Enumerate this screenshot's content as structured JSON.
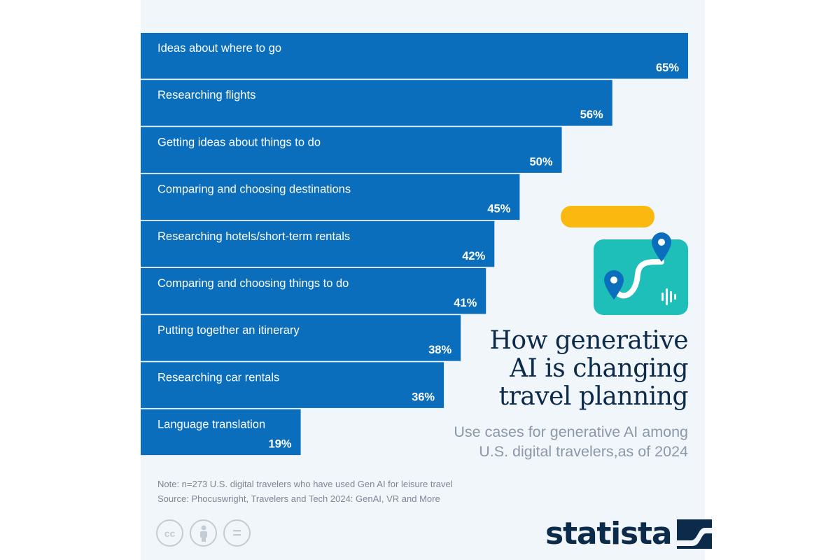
{
  "chart_data": {
    "type": "bar",
    "orientation": "horizontal",
    "title": "How generative AI is changing travel planning",
    "subtitle": "Use cases for generative AI among U.S. digital travelers,as of 2024",
    "categories": [
      "Ideas about where to go",
      "Researching flights",
      "Getting ideas about things to do",
      "Comparing and choosing destinations",
      "Researching hotels/short-term rentals",
      "Comparing and choosing things to do",
      "Putting together an itinerary",
      "Researching car rentals",
      "Language translation"
    ],
    "values": [
      65,
      56,
      50,
      45,
      42,
      41,
      38,
      36,
      19
    ],
    "value_labels": [
      "65%",
      "56%",
      "50%",
      "45%",
      "42%",
      "41%",
      "38%",
      "36%",
      "19%"
    ],
    "unit": "%",
    "xlim": [
      0,
      65
    ],
    "grid": false,
    "legend": "none",
    "bar_color": "#0a6ebd"
  },
  "title_lines": [
    "How generative",
    "AI is changing",
    "travel planning"
  ],
  "subtitle_lines": [
    "Use cases for generative AI among",
    "U.S. digital travelers,as of 2024"
  ],
  "note": "Note: n=273 U.S. digital travelers who have used Gen AI for leisure travel",
  "source": "Source: Phocuswright, Travelers and Tech 2024: GenAI, VR and More",
  "brand": "statista",
  "license_icons": [
    "creative-commons-icon",
    "attribution-person-icon",
    "no-derivatives-icon"
  ],
  "license_text": {
    "cc": "cc",
    "nd": "="
  },
  "illustration_icons": [
    "map-icon",
    "location-pin-icon",
    "sound-wave-icon"
  ],
  "colors": {
    "bar": "#0a6ebd",
    "background": "#f1f6fb",
    "title": "#0c2a4a",
    "subtitle": "#8a98a8",
    "accent_yellow": "#fbb80f",
    "accent_teal": "#1ebfb9"
  }
}
